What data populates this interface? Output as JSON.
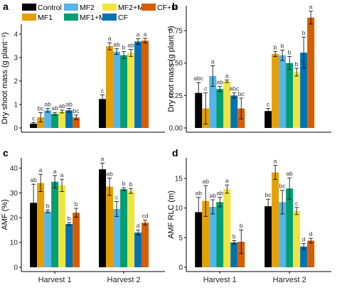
{
  "legend": {
    "entries": [
      "Control",
      "MF2",
      "MF2+M",
      "CF+M",
      "MF1",
      "MF1+M",
      "CF"
    ]
  },
  "series_colors": {
    "Control": "#000000",
    "MF1": "#e69f00",
    "MF2": "#56b4e9",
    "MF1+M": "#009e73",
    "MF2+M": "#f0e442",
    "CF": "#0072b2",
    "CF+M": "#d55e00"
  },
  "chart_data": [
    {
      "type": "bar",
      "panel_label": "a",
      "ylabel": "Dry shoot mass (g plant⁻¹)",
      "ylim": [
        0,
        4.3
      ],
      "yticks": [
        0,
        1,
        2,
        3,
        4
      ],
      "ytick_labels": [
        "0",
        "1",
        "2",
        "3",
        "4"
      ],
      "categories": [
        "Harvest 1",
        "Harvest 2"
      ],
      "show_xticks": false,
      "series": [
        {
          "name": "Control",
          "values": [
            0.18,
            1.23
          ],
          "errors": [
            0.05,
            0.18
          ],
          "letters": [
            "c",
            "c"
          ]
        },
        {
          "name": "MF1",
          "values": [
            0.45,
            3.48
          ],
          "errors": [
            0.2,
            0.15
          ],
          "letters": [
            "bc",
            "a"
          ]
        },
        {
          "name": "MF2",
          "values": [
            0.75,
            3.25
          ],
          "errors": [
            0.08,
            0.12
          ],
          "letters": [
            "ab",
            "ab"
          ]
        },
        {
          "name": "MF1+M",
          "values": [
            0.6,
            3.1
          ],
          "errors": [
            0.06,
            0.15
          ],
          "letters": [
            "ab",
            "b"
          ]
        },
        {
          "name": "MF2+M",
          "values": [
            0.7,
            3.2
          ],
          "errors": [
            0.06,
            0.15
          ],
          "letters": [
            "ab",
            "ab"
          ]
        },
        {
          "name": "CF",
          "values": [
            0.75,
            3.68
          ],
          "errors": [
            0.08,
            0.12
          ],
          "letters": [
            "ab",
            "a"
          ]
        },
        {
          "name": "CF+M",
          "values": [
            0.45,
            3.72
          ],
          "errors": [
            0.1,
            0.1
          ],
          "letters": [
            "bc",
            "a"
          ]
        }
      ]
    },
    {
      "type": "bar",
      "panel_label": "b",
      "ylabel": "Dry root mass (g plant⁻¹)",
      "ylim": [
        0,
        0.92
      ],
      "yticks": [
        0,
        0.25,
        0.5,
        0.75
      ],
      "ytick_labels": [
        "0.00",
        "0.25",
        "0.50",
        "0.75"
      ],
      "categories": [
        "Harvest 1",
        "Harvest 2"
      ],
      "show_xticks": false,
      "series": [
        {
          "name": "Control",
          "values": [
            0.27,
            0.13
          ],
          "errors": [
            0.08,
            0.02
          ],
          "letters": [
            "abc",
            "c"
          ]
        },
        {
          "name": "MF1",
          "values": [
            0.15,
            0.57
          ],
          "errors": [
            0.12,
            0.02
          ],
          "letters": [
            "c",
            "b"
          ]
        },
        {
          "name": "MF2",
          "values": [
            0.4,
            0.56
          ],
          "errors": [
            0.08,
            0.04
          ],
          "letters": [
            "a",
            "b"
          ]
        },
        {
          "name": "MF1+M",
          "values": [
            0.3,
            0.5
          ],
          "errors": [
            0.02,
            0.05
          ],
          "letters": [
            "ab",
            "b"
          ]
        },
        {
          "name": "MF2+M",
          "values": [
            0.36,
            0.43
          ],
          "errors": [
            0.01,
            0.03
          ],
          "letters": [
            "a",
            "b"
          ]
        },
        {
          "name": "CF",
          "values": [
            0.25,
            0.58
          ],
          "errors": [
            0.02,
            0.12
          ],
          "letters": [
            "abc",
            "b"
          ]
        },
        {
          "name": "CF+M",
          "values": [
            0.15,
            0.85
          ],
          "errors": [
            0.08,
            0.05
          ],
          "letters": [
            "bc",
            "a"
          ]
        }
      ]
    },
    {
      "type": "bar",
      "panel_label": "c",
      "ylabel": "AMF (%)",
      "ylim": [
        0,
        43
      ],
      "yticks": [
        0,
        10,
        20,
        30,
        40
      ],
      "ytick_labels": [
        "0",
        "10",
        "20",
        "30",
        "40"
      ],
      "categories": [
        "Harvest 1",
        "Harvest 2"
      ],
      "show_xticks": true,
      "series": [
        {
          "name": "Control",
          "values": [
            26,
            39.5
          ],
          "errors": [
            7.5,
            2.5
          ],
          "letters": [
            "ab",
            "a"
          ]
        },
        {
          "name": "MF1",
          "values": [
            34,
            32.5
          ],
          "errors": [
            3.5,
            3.5
          ],
          "letters": [
            "a",
            "ab"
          ]
        },
        {
          "name": "MF2",
          "values": [
            22.5,
            23.5
          ],
          "errors": [
            0.6,
            3
          ],
          "letters": [
            "b",
            "c"
          ]
        },
        {
          "name": "MF1+M",
          "values": [
            34.5,
            31.5
          ],
          "errors": [
            2.5,
            0.6
          ],
          "letters": [
            "a",
            "b"
          ]
        },
        {
          "name": "MF2+M",
          "values": [
            33,
            30.8
          ],
          "errors": [
            2.5,
            1
          ],
          "letters": [
            "a",
            "b"
          ]
        },
        {
          "name": "CF",
          "values": [
            17.5,
            14
          ],
          "errors": [
            0.6,
            1
          ],
          "letters": [
            "b",
            "d"
          ]
        },
        {
          "name": "CF+M",
          "values": [
            22,
            18
          ],
          "errors": [
            1.8,
            1
          ],
          "letters": [
            "b",
            "cd"
          ]
        }
      ]
    },
    {
      "type": "bar",
      "panel_label": "d",
      "ylabel": "AMF RLC (m)",
      "ylim": [
        0,
        18
      ],
      "yticks": [
        0,
        5,
        10,
        15
      ],
      "ytick_labels": [
        "0",
        "5",
        "10",
        "15"
      ],
      "categories": [
        "Harvest 1",
        "Harvest 2"
      ],
      "show_xticks": true,
      "series": [
        {
          "name": "Control",
          "values": [
            9.3,
            10.3
          ],
          "errors": [
            2.5,
            1.2
          ],
          "letters": [
            "ab",
            "bc"
          ]
        },
        {
          "name": "MF1",
          "values": [
            11.2,
            16
          ],
          "errors": [
            2.6,
            1.2
          ],
          "letters": [
            "ab",
            "a"
          ]
        },
        {
          "name": "MF2",
          "values": [
            10.2,
            11
          ],
          "errors": [
            1.2,
            2
          ],
          "letters": [
            "ab",
            "bc"
          ]
        },
        {
          "name": "MF1+M",
          "values": [
            11,
            13.3
          ],
          "errors": [
            0.8,
            1.8
          ],
          "letters": [
            "ab",
            "ab"
          ]
        },
        {
          "name": "MF2+M",
          "values": [
            13.2,
            9.5
          ],
          "errors": [
            0.7,
            0.6
          ],
          "letters": [
            "a",
            "c"
          ]
        },
        {
          "name": "CF",
          "values": [
            4.2,
            3.5
          ],
          "errors": [
            0.3,
            0.5
          ],
          "letters": [
            "b",
            "d"
          ]
        },
        {
          "name": "CF+M",
          "values": [
            4.3,
            4.5
          ],
          "errors": [
            2,
            0.4
          ],
          "letters": [
            "b",
            "d"
          ]
        }
      ]
    }
  ]
}
